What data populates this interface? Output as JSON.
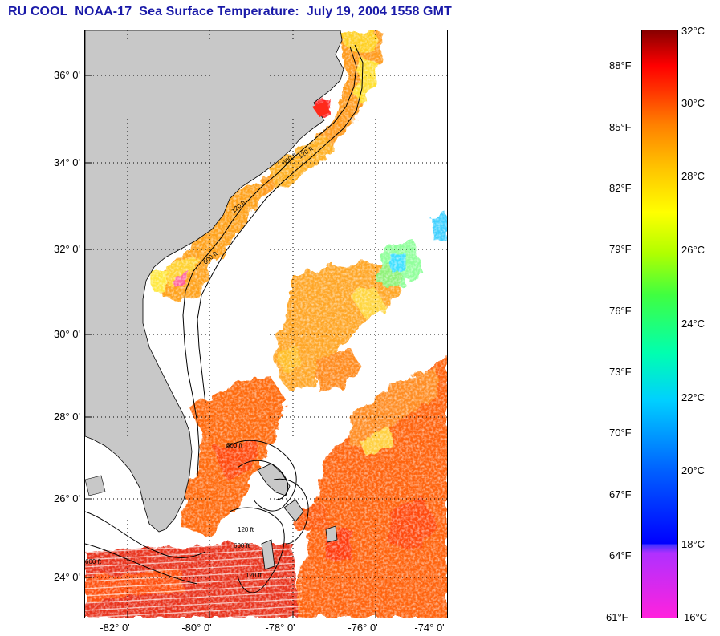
{
  "title": "RU COOL  NOAA-17  Sea Surface Temperature:  July 19, 2004 1558 GMT",
  "map": {
    "lat_labels": [
      "36° 0'",
      "34° 0'",
      "32° 0'",
      "30° 0'",
      "28° 0'",
      "26° 0'",
      "24° 0'"
    ],
    "lon_labels": [
      "-82° 0'",
      "-80° 0'",
      "-78° 0'",
      "-76° 0'",
      "-74° 0'"
    ],
    "contour_labels": [
      "600 ft",
      "120 ft",
      "600 ft",
      "120 ft",
      "600 ft",
      "120 ft",
      "600 ft",
      "120 ft",
      "600 ft"
    ],
    "land_color": "#c8c8c8",
    "nodata_color": "#ffffff"
  },
  "colorbar": {
    "celsius_labels": [
      "32°C",
      "30°C",
      "28°C",
      "26°C",
      "24°C",
      "22°C",
      "20°C",
      "18°C",
      "16°C"
    ],
    "fahrenheit_labels": [
      "88°F",
      "85°F",
      "82°F",
      "79°F",
      "76°F",
      "73°F",
      "70°F",
      "67°F",
      "64°F",
      "61°F"
    ],
    "stops": [
      "#ff22dd",
      "#9030ff",
      "#2018c8",
      "#0000ff",
      "#00a0ff",
      "#00ffff",
      "#00ff80",
      "#80ff00",
      "#ffff00",
      "#ffa000",
      "#ff6000",
      "#ff0000",
      "#880000"
    ]
  }
}
